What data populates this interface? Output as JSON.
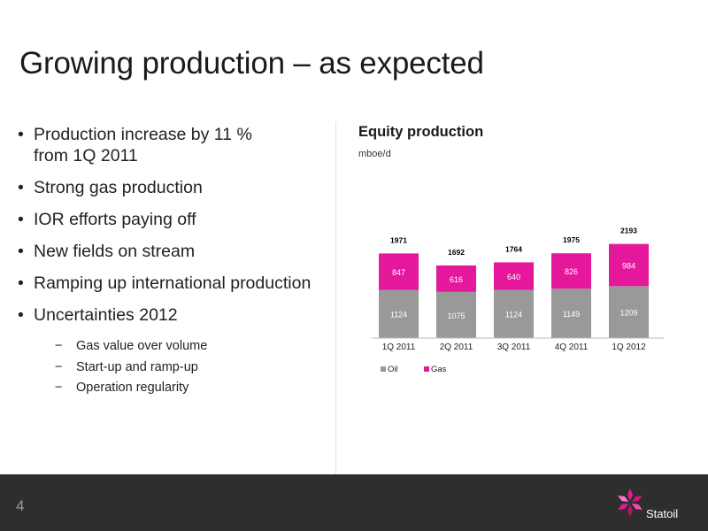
{
  "slide": {
    "title": "Growing production – as expected",
    "page_number": "4",
    "logo_text": "Statoil"
  },
  "bullets": [
    {
      "line1": "Production increase by 11 %",
      "line2": "from 1Q 2011"
    },
    {
      "line1": "Strong gas production"
    },
    {
      "line1": "IOR efforts paying off"
    },
    {
      "line1": "New fields on stream"
    },
    {
      "line1": "Ramping up international production"
    },
    {
      "line1": "Uncertainties 2012"
    }
  ],
  "sub_bullets": [
    "Gas value over volume",
    "Start-up and ramp-up",
    "Operation regularity"
  ],
  "chart_data": {
    "type": "bar",
    "stacked": true,
    "title": "Equity production",
    "ylabel": "mboe/d",
    "categories": [
      "1Q 2011",
      "2Q 2011",
      "3Q 2011",
      "4Q 2011",
      "1Q 2012"
    ],
    "series": [
      {
        "name": "Oil",
        "color": "#999999",
        "values": [
          1124,
          1075,
          1124,
          1149,
          1209
        ]
      },
      {
        "name": "Gas",
        "color": "#e5189b",
        "values": [
          847,
          616,
          640,
          826,
          984
        ]
      }
    ],
    "totals": [
      1971,
      1692,
      1764,
      1975,
      2193
    ],
    "ylim": [
      0,
      2300
    ],
    "legend_position": "bottom-left",
    "grid": false
  }
}
